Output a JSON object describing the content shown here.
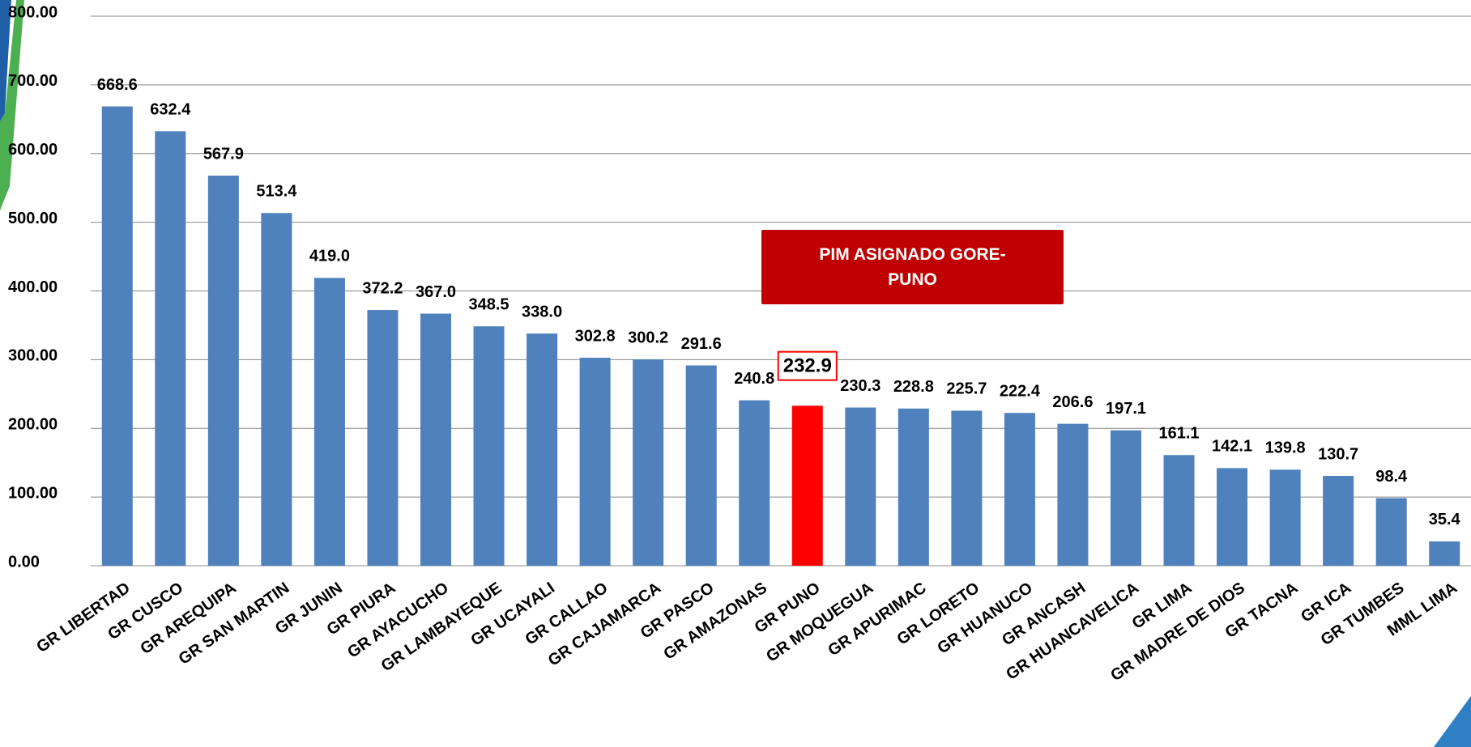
{
  "chart_data": {
    "type": "bar",
    "annotation": "PIM ASIGNADO GORE-PUNO",
    "categories": [
      "GR LIBERTAD",
      "GR CUSCO",
      "GR AREQUIPA",
      "GR SAN MARTIN",
      "GR JUNIN",
      "GR PIURA",
      "GR AYACUCHO",
      "GR LAMBAYEQUE",
      "GR UCAYALI",
      "GR CALLAO",
      "GR CAJAMARCA",
      "GR PASCO",
      "GR AMAZONAS",
      "GR PUNO",
      "GR MOQUEGUA",
      "GR APURIMAC",
      "GR LORETO",
      "GR HUANUCO",
      "GR ANCASH",
      "GR HUANCAVELICA",
      "GR LIMA",
      "GR MADRE DE DIOS",
      "GR TACNA",
      "GR ICA",
      "GR TUMBES",
      "MML LIMA"
    ],
    "values": [
      668.6,
      632.4,
      567.9,
      513.4,
      419.0,
      372.2,
      367.0,
      348.5,
      338.0,
      302.8,
      300.2,
      291.6,
      240.8,
      232.9,
      230.3,
      228.8,
      225.7,
      222.4,
      206.6,
      197.1,
      161.1,
      142.1,
      139.8,
      130.7,
      98.4,
      35.4
    ],
    "value_labels": [
      "668.6",
      "632.4",
      "567.9",
      "513.4",
      "419.0",
      "372.2",
      "367.0",
      "348.5",
      "338.0",
      "302.8",
      "300.2",
      "291.6",
      "240.8",
      "232.9",
      "230.3",
      "228.8",
      "225.7",
      "222.4",
      "206.6",
      "197.1",
      "161.1",
      "142.1",
      "139.8",
      "130.7",
      "98.4",
      "35.4"
    ],
    "color": "#4f81bd",
    "colors": [
      "#4f81bd",
      "#4f81bd",
      "#4f81bd",
      "#4f81bd",
      "#4f81bd",
      "#4f81bd",
      "#4f81bd",
      "#4f81bd",
      "#4f81bd",
      "#4f81bd",
      "#4f81bd",
      "#4f81bd",
      "#4f81bd",
      "#ff0000",
      "#4f81bd",
      "#4f81bd",
      "#4f81bd",
      "#4f81bd",
      "#4f81bd",
      "#4f81bd",
      "#4f81bd",
      "#4f81bd",
      "#4f81bd",
      "#4f81bd",
      "#4f81bd",
      "#4f81bd"
    ],
    "ylim": [
      0,
      800
    ],
    "yticks": [
      {
        "value": 0,
        "label": "0.00"
      },
      {
        "value": 100,
        "label": "100.00"
      },
      {
        "value": 200,
        "label": "200.00"
      },
      {
        "value": 300,
        "label": "300.00"
      },
      {
        "value": 400,
        "label": "400.00"
      },
      {
        "value": 500,
        "label": "500.00"
      },
      {
        "value": 600,
        "label": "600.00"
      },
      {
        "value": 700,
        "label": "700.00"
      },
      {
        "value": 800,
        "label": "800.00"
      }
    ],
    "grid": true
  }
}
